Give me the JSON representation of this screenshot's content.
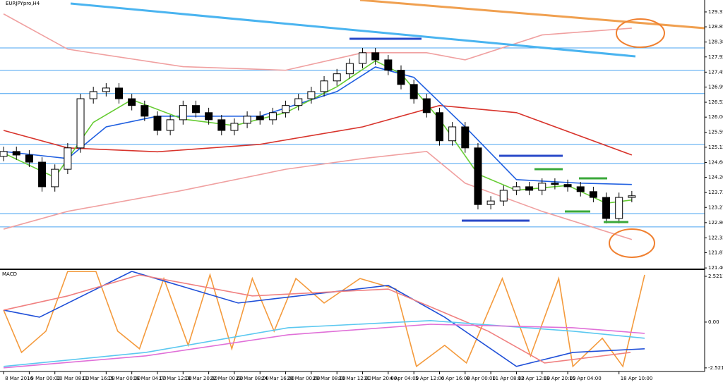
{
  "chart_data": [
    {
      "type": "candlestick",
      "title": "EURJPYpro,H4",
      "open": [
        124.85,
        125.0,
        124.89,
        124.67,
        123.91,
        124.45,
        125.11,
        126.63,
        126.85,
        126.96,
        126.63,
        126.42,
        126.09,
        125.65,
        125.98,
        126.42,
        126.2,
        125.98,
        125.65,
        125.87,
        126.09,
        125.98,
        126.2,
        126.42,
        126.63,
        126.85,
        127.18,
        127.4,
        127.72,
        128.05,
        127.83,
        127.51,
        127.07,
        126.63,
        126.2,
        125.33,
        125.76,
        125.11,
        123.36,
        123.47,
        123.8,
        123.91,
        123.8,
        124.02,
        123.98,
        123.91,
        123.76,
        123.58,
        122.93,
        123.58
      ],
      "high": [
        125.15,
        125.15,
        125.04,
        124.82,
        124.6,
        125.26,
        126.78,
        127.0,
        127.11,
        127.11,
        126.78,
        126.57,
        126.24,
        126.13,
        126.57,
        126.57,
        126.35,
        126.13,
        126.02,
        126.24,
        126.24,
        126.35,
        126.57,
        126.78,
        127.0,
        127.33,
        127.55,
        127.87,
        128.2,
        128.2,
        127.98,
        127.66,
        127.22,
        126.78,
        126.35,
        125.91,
        125.91,
        125.26,
        123.62,
        123.95,
        124.06,
        124.06,
        124.17,
        124.17,
        124.13,
        124.06,
        123.91,
        123.73,
        123.73,
        123.78
      ],
      "low": [
        124.7,
        124.74,
        124.52,
        123.76,
        123.76,
        124.3,
        124.96,
        126.48,
        126.7,
        126.48,
        126.27,
        125.94,
        125.5,
        125.5,
        125.83,
        126.05,
        125.83,
        125.5,
        125.5,
        125.72,
        125.83,
        125.83,
        126.05,
        126.27,
        126.48,
        126.7,
        127.03,
        127.25,
        127.57,
        127.68,
        127.36,
        126.92,
        126.48,
        126.05,
        125.18,
        125.18,
        124.96,
        123.21,
        123.21,
        123.32,
        123.65,
        123.65,
        123.65,
        123.83,
        123.76,
        123.61,
        123.43,
        122.78,
        122.78,
        123.43
      ],
      "close": [
        125.0,
        124.89,
        124.67,
        123.91,
        124.45,
        125.11,
        126.63,
        126.85,
        126.96,
        126.63,
        126.42,
        126.09,
        125.65,
        125.98,
        126.42,
        126.2,
        125.98,
        125.65,
        125.87,
        126.09,
        125.98,
        126.2,
        126.42,
        126.63,
        126.85,
        127.18,
        127.4,
        127.72,
        128.05,
        127.83,
        127.51,
        127.07,
        126.63,
        126.2,
        125.33,
        125.76,
        125.11,
        123.36,
        123.47,
        123.8,
        123.91,
        123.8,
        124.02,
        123.98,
        123.91,
        123.76,
        123.58,
        122.93,
        123.58,
        123.63
      ],
      "up_color": "#ffffff",
      "down_color": "#000000",
      "xlim": [
        -0.28,
        54.68
      ],
      "ylim": [
        121.36,
        129.68
      ],
      "yticks": [
        129.311,
        128.851,
        128.381,
        127.921,
        127.451,
        126.991,
        126.521,
        126.061,
        125.591,
        125.131,
        124.661,
        124.201,
        123.731,
        123.271,
        122.801,
        122.331,
        121.871,
        121.401
      ],
      "xticks": [
        {
          "value": 0,
          "label": "8 Mar 2016"
        },
        {
          "value": 2,
          "label": "9 Mar 00:00"
        },
        {
          "value": 4,
          "label": "10 Mar 08:00"
        },
        {
          "value": 6,
          "label": "11 Mar 16:00"
        },
        {
          "value": 8,
          "label": "15 Mar 00:00"
        },
        {
          "value": 10,
          "label": "16 Mar 04:00"
        },
        {
          "value": 12,
          "label": "17 Mar 12:00"
        },
        {
          "value": 14,
          "label": "18 Mar 20:00"
        },
        {
          "value": 16,
          "label": "22 Mar 00:00"
        },
        {
          "value": 18,
          "label": "23 Mar 08:00"
        },
        {
          "value": 20,
          "label": "24 Mar 16:00"
        },
        {
          "value": 22,
          "label": "28 Mar 00:00"
        },
        {
          "value": 24,
          "label": "29 Mar 08:00"
        },
        {
          "value": 26,
          "label": "30 Mar 12:00"
        },
        {
          "value": 28,
          "label": "31 Mar 20:00"
        },
        {
          "value": 30,
          "label": "4 Apr 04:00"
        },
        {
          "value": 32,
          "label": "5 Apr 12:00"
        },
        {
          "value": 34,
          "label": "6 Apr 16:00"
        },
        {
          "value": 36,
          "label": "8 Apr 00:00"
        },
        {
          "value": 38,
          "label": "11 Apr 08:00"
        },
        {
          "value": 40,
          "label": "12 Apr 12:00"
        },
        {
          "value": 42,
          "label": "13 Apr 20:00"
        },
        {
          "value": 44,
          "label": "15 Apr 04:00"
        },
        {
          "value": 48,
          "label": "18 Apr 10:00"
        }
      ],
      "levels": [
        128.2,
        127.51,
        126.79,
        125.22,
        124.63,
        123.08,
        122.67
      ],
      "level_color": "#4aa3f0",
      "lines": [
        {
          "color": "#d8342c",
          "x": [
            0,
            5,
            12,
            20,
            28,
            34,
            40,
            49
          ],
          "values": [
            125.65,
            125.11,
            124.99,
            125.22,
            125.76,
            126.42,
            126.2,
            124.89
          ]
        },
        {
          "color": "#f0a0a0",
          "x": [
            0,
            5,
            14,
            22,
            28,
            33,
            36,
            42,
            49
          ],
          "values": [
            129.25,
            128.16,
            127.62,
            127.51,
            128.05,
            128.05,
            127.83,
            128.6,
            128.81
          ]
        },
        {
          "color": "#f0a0a0",
          "x": [
            0,
            5,
            14,
            22,
            28,
            33,
            36,
            42,
            49
          ],
          "values": [
            122.6,
            123.15,
            123.8,
            124.45,
            124.78,
            125.0,
            124.02,
            123.15,
            122.28
          ]
        },
        {
          "color": "#1f5fe0",
          "x": [
            0,
            5,
            8,
            12,
            20,
            26,
            29,
            32,
            36,
            40,
            45,
            49
          ],
          "values": [
            125.0,
            124.78,
            125.76,
            126.09,
            126.09,
            126.85,
            127.61,
            127.29,
            125.76,
            124.13,
            124.02,
            123.98
          ]
        },
        {
          "color": "#66cc33",
          "x": [
            0,
            4,
            7,
            10,
            14,
            18,
            22,
            26,
            29,
            31,
            34,
            37,
            40,
            44,
            47,
            49
          ],
          "values": [
            124.95,
            124.2,
            125.9,
            126.6,
            126.0,
            125.8,
            126.2,
            127.0,
            127.8,
            127.4,
            126.0,
            124.3,
            123.8,
            123.95,
            123.4,
            123.5
          ]
        }
      ]
    },
    {
      "type": "line",
      "title": "MACD",
      "xlim": [
        -0.28,
        54.68
      ],
      "ylim": [
        -2.72,
        2.83
      ],
      "yticks": [
        2.5211,
        {
          "value": 0,
          "label": "0.00"
        },
        -2.5211
      ],
      "series": [
        {
          "color": "#f49a3c",
          "x": [
            0,
            1.4,
            3.3,
            5,
            7.2,
            8.9,
            10.6,
            12.5,
            14.4,
            16.1,
            17.8,
            19.4,
            21.1,
            22.8,
            25,
            27.8,
            30.6,
            32.2,
            34.4,
            36.1,
            38.9,
            41.1,
            43.3,
            44.4,
            46.7,
            48.3,
            50
          ],
          "values": [
            0.66,
            -1.67,
            -0.5,
            2.79,
            2.79,
            -0.5,
            -1.47,
            2.4,
            -1.28,
            2.6,
            -1.47,
            2.4,
            -0.5,
            2.4,
            1.05,
            2.4,
            1.82,
            -2.44,
            -1.28,
            -2.25,
            2.4,
            -1.86,
            2.4,
            -2.44,
            -0.89,
            -2.44,
            2.6
          ]
        },
        {
          "color": "#1f4fd8",
          "x": [
            0,
            2.8,
            10,
            18.3,
            30,
            34.4,
            40,
            44.4,
            50
          ],
          "values": [
            0.66,
            0.27,
            2.79,
            1.05,
            2.02,
            0.27,
            -2.44,
            -1.67,
            -1.47
          ]
        },
        {
          "color": "#f08080",
          "x": [
            0,
            5,
            10.6,
            19.4,
            30,
            37.8,
            42.2,
            48.9
          ],
          "values": [
            0.66,
            1.44,
            2.6,
            1.44,
            1.82,
            -0.5,
            -2.25,
            -1.67
          ]
        },
        {
          "color": "#5bc8f0",
          "x": [
            0,
            11.1,
            22.2,
            33.3,
            44.4,
            50
          ],
          "values": [
            -2.44,
            -1.67,
            -0.31,
            0.08,
            -0.5,
            -0.89
          ]
        },
        {
          "color": "#e070d8",
          "x": [
            0,
            11.1,
            22.2,
            33.3,
            44.4,
            50
          ],
          "values": [
            -2.52,
            -1.86,
            -0.7,
            -0.12,
            -0.31,
            -0.62
          ]
        }
      ]
    }
  ]
}
